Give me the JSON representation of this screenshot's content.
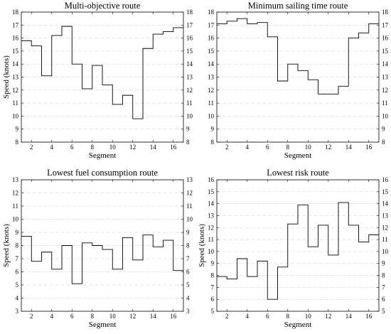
{
  "chart_data": [
    {
      "type": "line",
      "step": true,
      "title": "Multi-objective route",
      "xlabel": "Segment",
      "ylabel": "Speed (knots)",
      "xlim": [
        1,
        17
      ],
      "ylim": [
        8,
        18
      ],
      "xticks": [
        2,
        4,
        6,
        8,
        10,
        12,
        14,
        16
      ],
      "yticks": [
        8,
        9,
        10,
        11,
        12,
        13,
        14,
        15,
        16,
        17,
        18
      ],
      "grid": "horizontal dashed",
      "y_axis_right_labels": true,
      "series": [
        {
          "x": [
            1,
            2,
            3,
            4,
            5,
            6,
            7,
            8,
            9,
            10,
            11,
            12,
            13,
            14,
            15,
            16,
            17
          ],
          "values": [
            15.8,
            15.4,
            13.1,
            16.2,
            16.9,
            14.0,
            12.1,
            13.9,
            12.4,
            10.9,
            11.6,
            9.8,
            15.2,
            16.3,
            16.5,
            16.8,
            16.8
          ]
        }
      ]
    },
    {
      "type": "line",
      "step": true,
      "title": "Minimum sailing time route",
      "xlabel": "Segment",
      "ylabel": "",
      "xlim": [
        1,
        17
      ],
      "ylim": [
        8,
        18
      ],
      "xticks": [
        2,
        4,
        6,
        8,
        10,
        12,
        14,
        16
      ],
      "yticks": [
        8,
        9,
        10,
        11,
        12,
        13,
        14,
        15,
        16,
        17,
        18
      ],
      "grid": "horizontal dashed",
      "y_axis_right_labels": true,
      "series": [
        {
          "x": [
            1,
            2,
            3,
            4,
            5,
            6,
            7,
            8,
            9,
            10,
            11,
            12,
            13,
            14,
            15,
            16,
            17
          ],
          "values": [
            17.1,
            17.3,
            17.5,
            17.1,
            17.2,
            16.1,
            12.7,
            14.0,
            13.5,
            12.8,
            11.7,
            11.7,
            12.3,
            16.0,
            16.4,
            17.1,
            17.1
          ]
        }
      ]
    },
    {
      "type": "line",
      "step": true,
      "title": "Lowest fuel consumption route",
      "xlabel": "Segment",
      "ylabel": "Speed (knots)",
      "xlim": [
        1,
        17
      ],
      "ylim": [
        3,
        13
      ],
      "xticks": [
        2,
        4,
        6,
        8,
        10,
        12,
        14,
        16
      ],
      "yticks": [
        3,
        4,
        5,
        6,
        7,
        8,
        9,
        10,
        11,
        12,
        13
      ],
      "grid": "horizontal dashed",
      "y_axis_right_labels": true,
      "series": [
        {
          "x": [
            1,
            2,
            3,
            4,
            5,
            6,
            7,
            8,
            9,
            10,
            11,
            12,
            13,
            14,
            15,
            16,
            17
          ],
          "values": [
            8.7,
            6.8,
            7.5,
            6.2,
            8.0,
            5.1,
            8.2,
            8.0,
            7.7,
            6.2,
            8.6,
            6.9,
            8.8,
            7.9,
            8.4,
            6.1,
            6.1
          ]
        }
      ]
    },
    {
      "type": "line",
      "step": true,
      "title": "Lowest risk route",
      "xlabel": "Segment",
      "ylabel": "Speed (knots)",
      "xlim": [
        1,
        17
      ],
      "ylim": [
        5,
        16
      ],
      "xticks": [
        2,
        4,
        6,
        8,
        10,
        12,
        14,
        16
      ],
      "yticks": [
        5,
        6,
        7,
        8,
        9,
        10,
        11,
        12,
        13,
        14,
        15,
        16
      ],
      "grid": "horizontal dashed",
      "y_axis_right_labels": true,
      "series": [
        {
          "x": [
            1,
            2,
            3,
            4,
            5,
            6,
            7,
            8,
            9,
            10,
            11,
            12,
            13,
            14,
            15,
            16,
            17
          ],
          "values": [
            7.9,
            7.7,
            9.4,
            7.9,
            9.2,
            6.0,
            8.7,
            12.3,
            13.9,
            10.4,
            12.2,
            9.7,
            14.1,
            12.2,
            10.8,
            11.4,
            11.4
          ]
        }
      ]
    }
  ]
}
